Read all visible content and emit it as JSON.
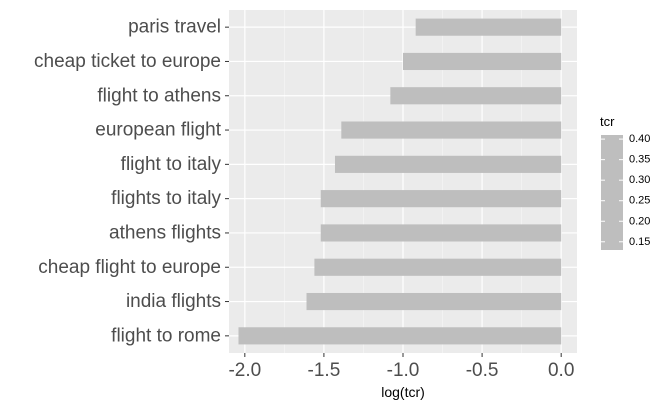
{
  "chart_data": {
    "type": "bar",
    "orientation": "horizontal",
    "categories": [
      "paris travel",
      "cheap ticket to europe",
      "flight to athens",
      "european flight",
      "flight to italy",
      "flights to italy",
      "athens flights",
      "cheap flight to europe",
      "india flights",
      "flight to rome"
    ],
    "values": [
      -0.92,
      -1.0,
      -1.08,
      -1.39,
      -1.43,
      -1.52,
      -1.52,
      -1.56,
      -1.61,
      -2.04
    ],
    "xlabel": "log(tcr)",
    "ylabel": "",
    "xlim": [
      -2.1,
      0.1
    ],
    "xticks": [
      -2.0,
      -1.5,
      -1.0,
      -0.5,
      0.0
    ],
    "xtick_labels": [
      "-2.0",
      "-1.5",
      "-1.0",
      "-0.5",
      "0.0"
    ],
    "bar_color": "#bebebe",
    "panel_color": "#ebebeb",
    "grid": true,
    "legend": {
      "title": "tcr",
      "placement": "right",
      "ticks": [
        "0.40",
        "0.35",
        "0.30",
        "0.25",
        "0.20",
        "0.15"
      ],
      "tick_values": [
        0.4,
        0.35,
        0.3,
        0.25,
        0.2,
        0.15
      ],
      "range": [
        0.13,
        0.41
      ],
      "color": "#bebebe"
    }
  }
}
